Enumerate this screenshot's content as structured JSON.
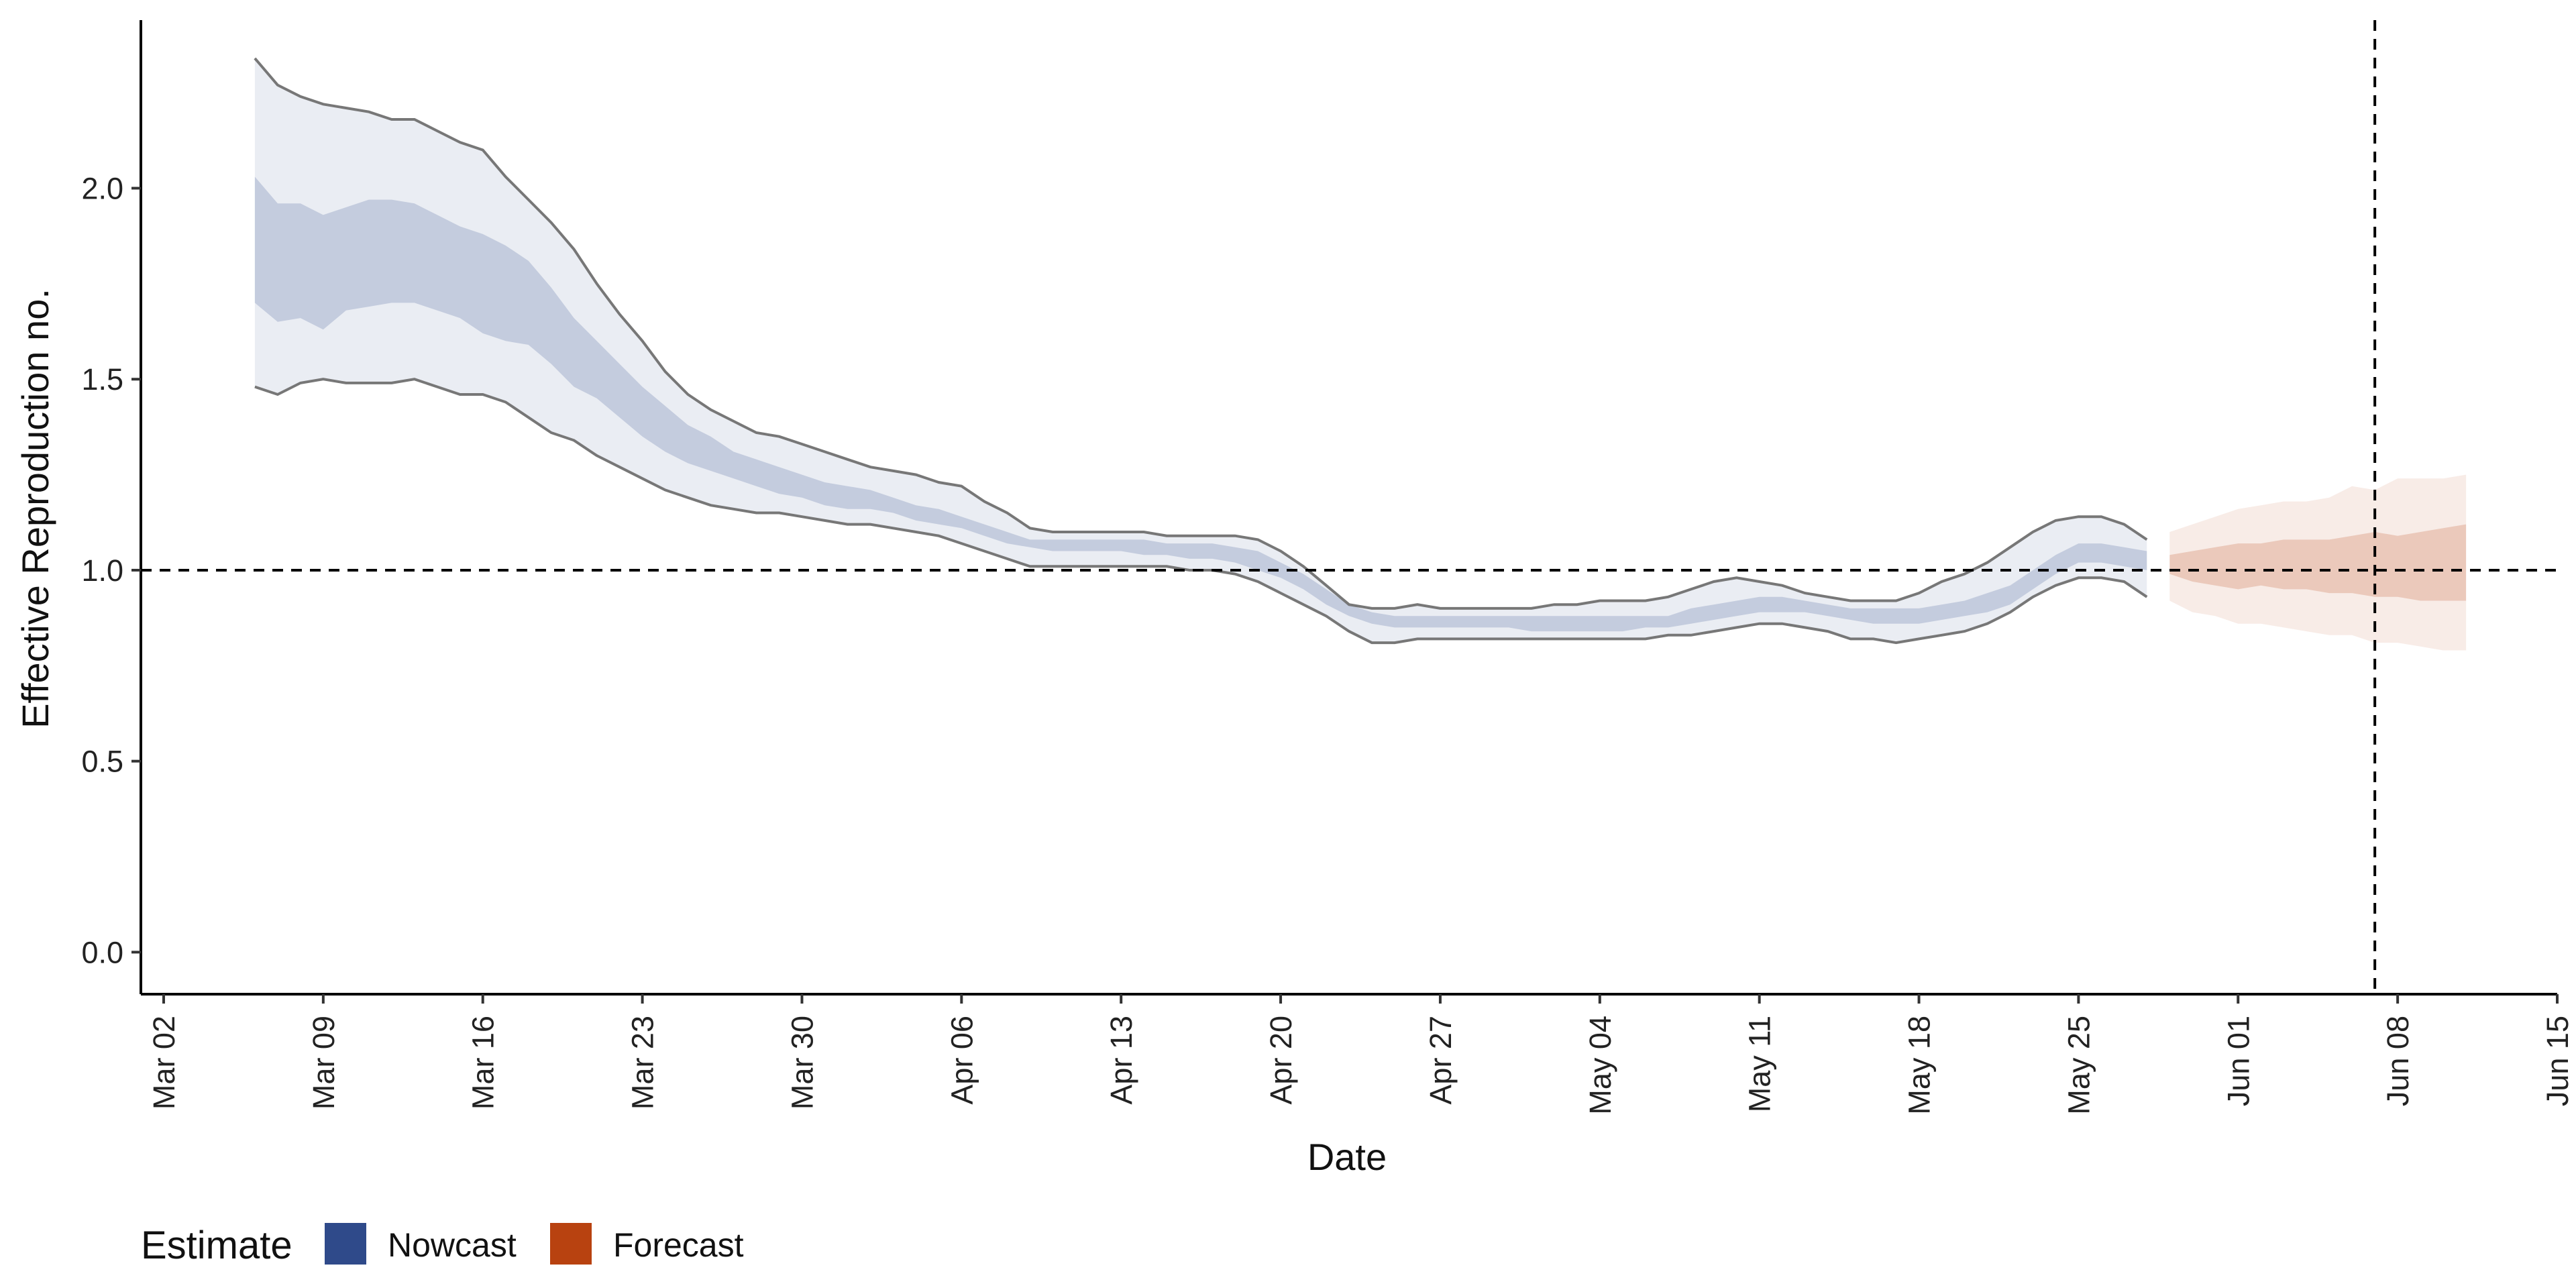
{
  "chart_data": {
    "type": "area",
    "title": "",
    "xlabel": "Date",
    "ylabel": "Effective Reproduction no.",
    "ylim": [
      -0.11,
      2.44
    ],
    "xlim": [
      "2020-03-01",
      "2020-06-15"
    ],
    "x_ticks": [
      "Mar 02",
      "Mar 09",
      "Mar 16",
      "Mar 23",
      "Mar 30",
      "Apr 06",
      "Apr 13",
      "Apr 20",
      "Apr 27",
      "May 04",
      "May 11",
      "May 18",
      "May 25",
      "Jun 01",
      "Jun 08",
      "Jun 15"
    ],
    "x_tick_dates": [
      "2020-03-02",
      "2020-03-09",
      "2020-03-16",
      "2020-03-23",
      "2020-03-30",
      "2020-04-06",
      "2020-04-13",
      "2020-04-20",
      "2020-04-27",
      "2020-05-04",
      "2020-05-11",
      "2020-05-18",
      "2020-05-25",
      "2020-06-01",
      "2020-06-08",
      "2020-06-15"
    ],
    "y_ticks": [
      0.0,
      0.5,
      1.0,
      1.5,
      2.0
    ],
    "y_tick_labels": [
      "0.0",
      "0.5",
      "1.0",
      "1.5",
      "2.0"
    ],
    "reference_lines": {
      "horizontal_y": 1.0,
      "vertical_date": "2020-06-07"
    },
    "legend": {
      "title": "Estimate",
      "position": "bottom-left",
      "entries": [
        "Nowcast",
        "Forecast"
      ]
    },
    "grid": false,
    "series": [
      {
        "name": "Nowcast",
        "color": "#2f4a8a",
        "x": [
          "2020-03-06",
          "2020-03-07",
          "2020-03-08",
          "2020-03-09",
          "2020-03-10",
          "2020-03-11",
          "2020-03-12",
          "2020-03-13",
          "2020-03-14",
          "2020-03-15",
          "2020-03-16",
          "2020-03-17",
          "2020-03-18",
          "2020-03-19",
          "2020-03-20",
          "2020-03-21",
          "2020-03-22",
          "2020-03-23",
          "2020-03-24",
          "2020-03-25",
          "2020-03-26",
          "2020-03-27",
          "2020-03-28",
          "2020-03-29",
          "2020-03-30",
          "2020-03-31",
          "2020-04-01",
          "2020-04-02",
          "2020-04-03",
          "2020-04-04",
          "2020-04-05",
          "2020-04-06",
          "2020-04-07",
          "2020-04-08",
          "2020-04-09",
          "2020-04-10",
          "2020-04-11",
          "2020-04-12",
          "2020-04-13",
          "2020-04-14",
          "2020-04-15",
          "2020-04-16",
          "2020-04-17",
          "2020-04-18",
          "2020-04-19",
          "2020-04-20",
          "2020-04-21",
          "2020-04-22",
          "2020-04-23",
          "2020-04-24",
          "2020-04-25",
          "2020-04-26",
          "2020-04-27",
          "2020-04-28",
          "2020-04-29",
          "2020-04-30",
          "2020-05-01",
          "2020-05-02",
          "2020-05-03",
          "2020-05-04",
          "2020-05-05",
          "2020-05-06",
          "2020-05-07",
          "2020-05-08",
          "2020-05-09",
          "2020-05-10",
          "2020-05-11",
          "2020-05-12",
          "2020-05-13",
          "2020-05-14",
          "2020-05-15",
          "2020-05-16",
          "2020-05-17",
          "2020-05-18",
          "2020-05-19",
          "2020-05-20",
          "2020-05-21",
          "2020-05-22",
          "2020-05-23",
          "2020-05-24",
          "2020-05-25",
          "2020-05-26",
          "2020-05-27",
          "2020-05-28"
        ],
        "lower_90": [
          1.48,
          1.46,
          1.49,
          1.5,
          1.49,
          1.49,
          1.49,
          1.5,
          1.48,
          1.46,
          1.46,
          1.44,
          1.4,
          1.36,
          1.34,
          1.3,
          1.27,
          1.24,
          1.21,
          1.19,
          1.17,
          1.16,
          1.15,
          1.15,
          1.14,
          1.13,
          1.12,
          1.12,
          1.11,
          1.1,
          1.09,
          1.07,
          1.05,
          1.03,
          1.01,
          1.01,
          1.01,
          1.01,
          1.01,
          1.01,
          1.01,
          1.0,
          1.0,
          0.99,
          0.97,
          0.94,
          0.91,
          0.88,
          0.84,
          0.81,
          0.81,
          0.82,
          0.82,
          0.82,
          0.82,
          0.82,
          0.82,
          0.82,
          0.82,
          0.82,
          0.82,
          0.82,
          0.83,
          0.83,
          0.84,
          0.85,
          0.86,
          0.86,
          0.85,
          0.84,
          0.82,
          0.82,
          0.81,
          0.82,
          0.83,
          0.84,
          0.86,
          0.89,
          0.93,
          0.96,
          0.98,
          0.98,
          0.97,
          0.93
        ],
        "lower_50": [
          1.7,
          1.65,
          1.66,
          1.63,
          1.68,
          1.69,
          1.7,
          1.7,
          1.68,
          1.66,
          1.62,
          1.6,
          1.59,
          1.54,
          1.48,
          1.45,
          1.4,
          1.35,
          1.31,
          1.28,
          1.26,
          1.24,
          1.22,
          1.2,
          1.19,
          1.17,
          1.16,
          1.16,
          1.15,
          1.13,
          1.12,
          1.11,
          1.09,
          1.07,
          1.06,
          1.05,
          1.05,
          1.05,
          1.05,
          1.04,
          1.04,
          1.03,
          1.03,
          1.02,
          1.0,
          0.98,
          0.95,
          0.91,
          0.88,
          0.86,
          0.85,
          0.85,
          0.85,
          0.85,
          0.85,
          0.85,
          0.84,
          0.84,
          0.84,
          0.84,
          0.84,
          0.85,
          0.85,
          0.86,
          0.87,
          0.88,
          0.89,
          0.89,
          0.89,
          0.88,
          0.87,
          0.86,
          0.86,
          0.86,
          0.87,
          0.88,
          0.89,
          0.91,
          0.95,
          0.99,
          1.02,
          1.02,
          1.01,
          1.0
        ],
        "upper_50": [
          2.03,
          1.96,
          1.96,
          1.93,
          1.95,
          1.97,
          1.97,
          1.96,
          1.93,
          1.9,
          1.88,
          1.85,
          1.81,
          1.74,
          1.66,
          1.6,
          1.54,
          1.48,
          1.43,
          1.38,
          1.35,
          1.31,
          1.29,
          1.27,
          1.25,
          1.23,
          1.22,
          1.21,
          1.19,
          1.17,
          1.16,
          1.14,
          1.12,
          1.1,
          1.08,
          1.08,
          1.08,
          1.08,
          1.08,
          1.08,
          1.07,
          1.07,
          1.07,
          1.06,
          1.05,
          1.02,
          0.99,
          0.95,
          0.91,
          0.89,
          0.88,
          0.88,
          0.88,
          0.88,
          0.88,
          0.88,
          0.88,
          0.88,
          0.88,
          0.88,
          0.88,
          0.88,
          0.88,
          0.9,
          0.91,
          0.92,
          0.93,
          0.93,
          0.92,
          0.91,
          0.9,
          0.9,
          0.9,
          0.9,
          0.91,
          0.92,
          0.94,
          0.96,
          1.0,
          1.04,
          1.07,
          1.07,
          1.06,
          1.05
        ],
        "upper_90": [
          2.34,
          2.27,
          2.24,
          2.22,
          2.21,
          2.2,
          2.18,
          2.18,
          2.15,
          2.12,
          2.1,
          2.03,
          1.97,
          1.91,
          1.84,
          1.75,
          1.67,
          1.6,
          1.52,
          1.46,
          1.42,
          1.39,
          1.36,
          1.35,
          1.33,
          1.31,
          1.29,
          1.27,
          1.26,
          1.25,
          1.23,
          1.22,
          1.18,
          1.15,
          1.11,
          1.1,
          1.1,
          1.1,
          1.1,
          1.1,
          1.09,
          1.09,
          1.09,
          1.09,
          1.08,
          1.05,
          1.01,
          0.96,
          0.91,
          0.9,
          0.9,
          0.91,
          0.9,
          0.9,
          0.9,
          0.9,
          0.9,
          0.91,
          0.91,
          0.92,
          0.92,
          0.92,
          0.93,
          0.95,
          0.97,
          0.98,
          0.97,
          0.96,
          0.94,
          0.93,
          0.92,
          0.92,
          0.92,
          0.94,
          0.97,
          0.99,
          1.02,
          1.06,
          1.1,
          1.13,
          1.14,
          1.14,
          1.12,
          1.08
        ]
      },
      {
        "name": "Forecast",
        "color": "#b84210",
        "x": [
          "2020-05-29",
          "2020-05-30",
          "2020-05-31",
          "2020-06-01",
          "2020-06-02",
          "2020-06-03",
          "2020-06-04",
          "2020-06-05",
          "2020-06-06",
          "2020-06-07",
          "2020-06-08",
          "2020-06-09",
          "2020-06-10",
          "2020-06-11"
        ],
        "lower_90": [
          0.92,
          0.89,
          0.88,
          0.86,
          0.86,
          0.85,
          0.84,
          0.83,
          0.83,
          0.81,
          0.81,
          0.8,
          0.79,
          0.79
        ],
        "lower_50": [
          0.99,
          0.97,
          0.96,
          0.95,
          0.96,
          0.95,
          0.95,
          0.94,
          0.94,
          0.93,
          0.93,
          0.92,
          0.92,
          0.92
        ],
        "upper_50": [
          1.04,
          1.05,
          1.06,
          1.07,
          1.07,
          1.08,
          1.08,
          1.08,
          1.09,
          1.1,
          1.09,
          1.1,
          1.11,
          1.12
        ],
        "upper_90": [
          1.1,
          1.12,
          1.14,
          1.16,
          1.17,
          1.18,
          1.18,
          1.19,
          1.22,
          1.21,
          1.24,
          1.24,
          1.24,
          1.25
        ]
      }
    ]
  }
}
